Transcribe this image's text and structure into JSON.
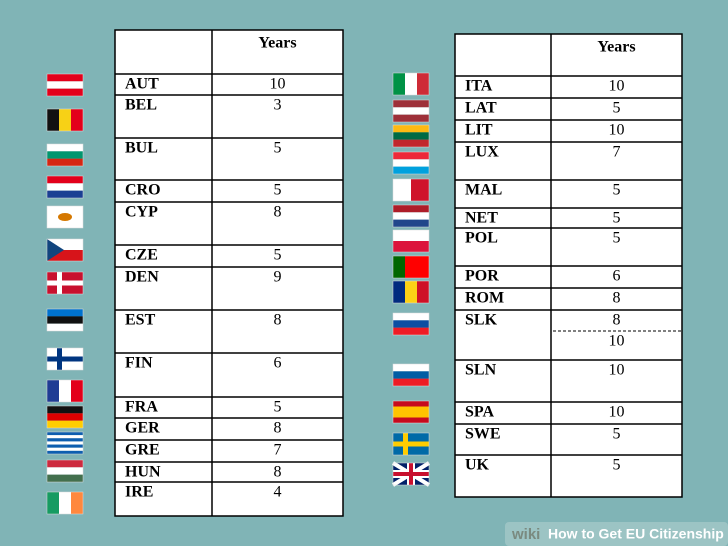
{
  "left_table": {
    "header": "Years",
    "rows": [
      [
        "AUT",
        "10"
      ],
      [
        "BEL",
        "3"
      ],
      [
        "BUL",
        "5"
      ],
      [
        "CRO",
        "5"
      ],
      [
        "CYP",
        "8"
      ],
      [
        "CZE",
        "5"
      ],
      [
        "DEN",
        "9"
      ],
      [
        "EST",
        "8"
      ],
      [
        "FIN",
        "6"
      ],
      [
        "FRA",
        "5"
      ],
      [
        "GER",
        "8"
      ],
      [
        "GRE",
        "7"
      ],
      [
        "HUN",
        "8"
      ],
      [
        "IRE",
        "4"
      ]
    ]
  },
  "right_table": {
    "header": "Years",
    "rows": [
      [
        "ITA",
        "10"
      ],
      [
        "LAT",
        "5"
      ],
      [
        "LIT",
        "10"
      ],
      [
        "LUX",
        "7"
      ],
      [
        "MAL",
        "5"
      ],
      [
        "NET",
        "5"
      ],
      [
        "POL",
        "5"
      ],
      [
        "POR",
        "6"
      ],
      [
        "ROM",
        "8"
      ],
      [
        "SLK",
        "8",
        "10"
      ],
      [
        "SLN",
        "10"
      ],
      [
        "SPA",
        "10"
      ],
      [
        "SWE",
        "5"
      ],
      [
        "UK",
        "5"
      ]
    ]
  },
  "watermark": {
    "brand": "wiki",
    "title": "How to Get EU Citizenship"
  }
}
